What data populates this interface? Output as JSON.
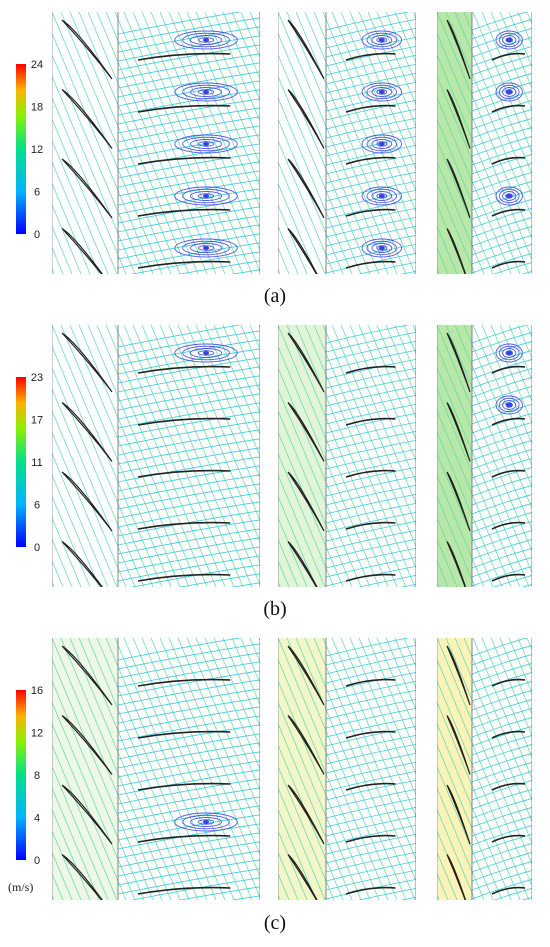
{
  "figure": {
    "unit_label": "(m/s)",
    "panels": [
      {
        "caption": "(a)",
        "colorbar_ticks": [
          "24",
          "18",
          "12",
          "6",
          "0"
        ],
        "case_tints": [
          "#ffffff",
          "#ffffff",
          "#b8e8a8"
        ],
        "vortex_rows": [
          [
            0,
            1,
            2,
            3,
            4
          ],
          [
            0,
            1,
            2,
            3,
            4
          ],
          [
            0,
            1,
            3
          ]
        ]
      },
      {
        "caption": "(b)",
        "colorbar_ticks": [
          "23",
          "17",
          "11",
          "6",
          "0"
        ],
        "case_tints": [
          "#ffffff",
          "#e2f4d8",
          "#b8e8a8"
        ],
        "vortex_rows": [
          [
            0
          ],
          [],
          [
            0,
            1
          ]
        ]
      },
      {
        "caption": "(c)",
        "colorbar_ticks": [
          "16",
          "12",
          "8",
          "4",
          "0"
        ],
        "case_tints": [
          "#eef8e6",
          "#f2f6c8",
          "#fbf3b8"
        ],
        "vortex_rows": [
          [
            3
          ],
          [],
          []
        ]
      }
    ],
    "colors": {
      "streamline_main": "#28c8d8",
      "streamline_upstream": "#60d8a8",
      "vortex": "#3a40e0",
      "blade": "#222222"
    }
  }
}
